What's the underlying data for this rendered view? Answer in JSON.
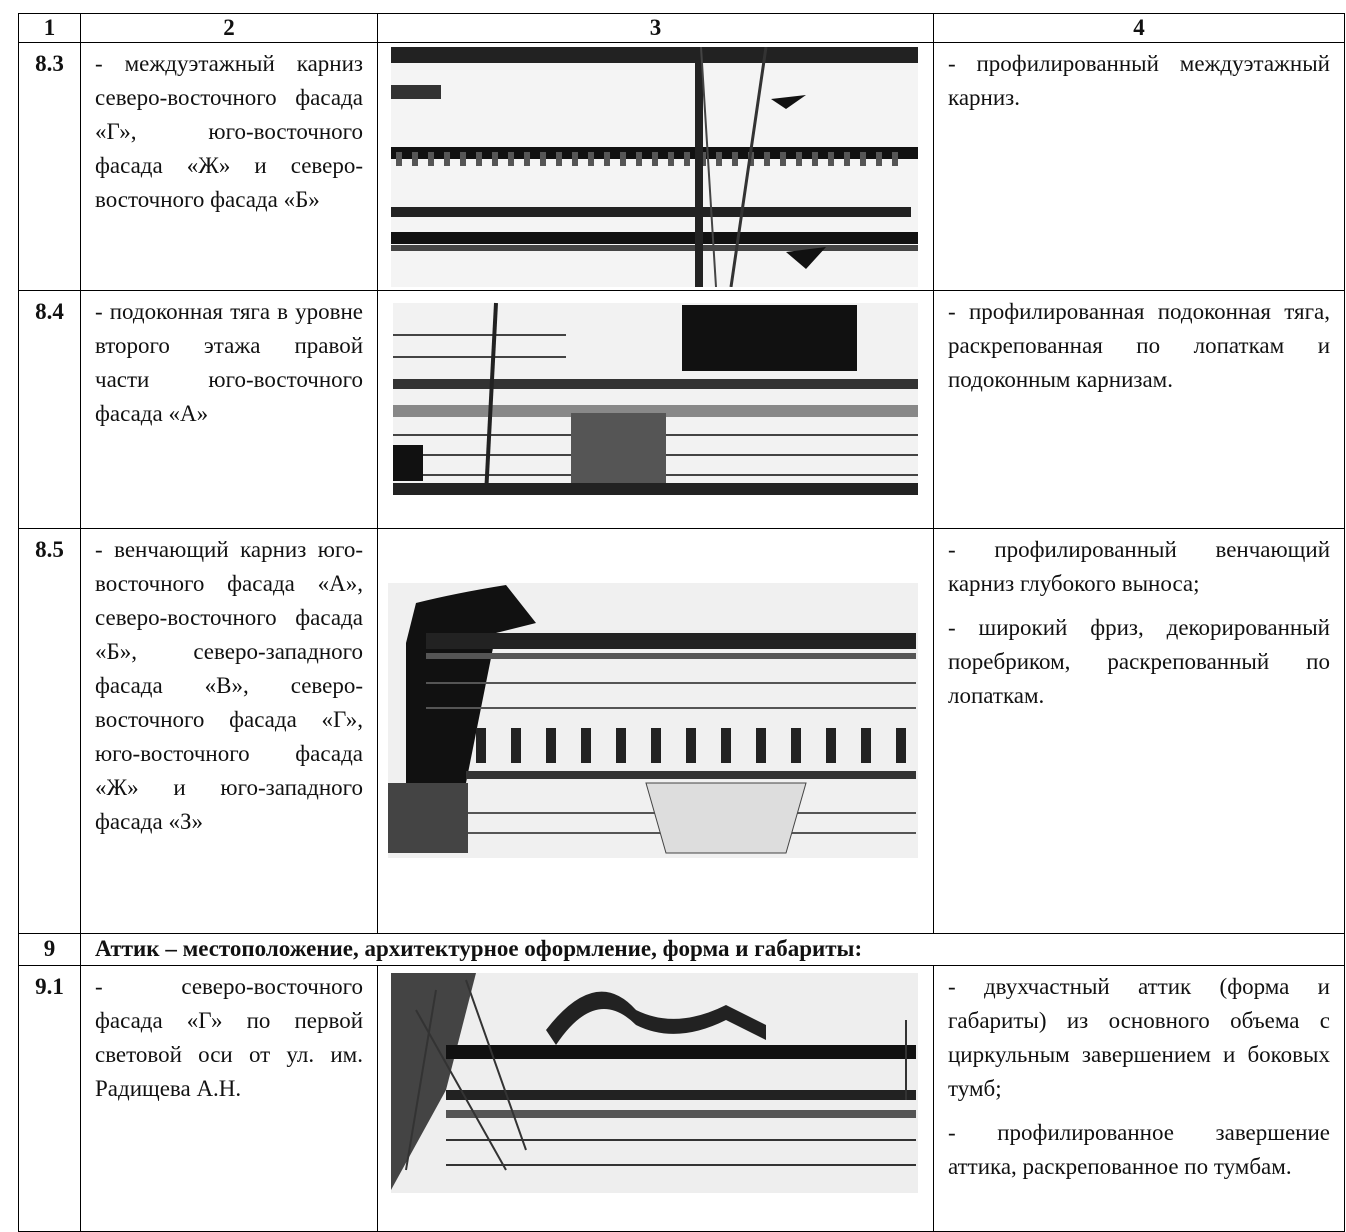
{
  "table": {
    "header": [
      "1",
      "2",
      "3",
      "4"
    ],
    "rows": [
      {
        "number": "8.3",
        "element": "- междуэтажный карниз северо-восточного фасада «Г», юго-восточного фасада «Ж» и северо-восточного фасада «Б»",
        "description": [
          "- профилированный междуэтажный карниз."
        ]
      },
      {
        "number": "8.4",
        "element": "- подоконная тяга в уровне второго этажа правой части юго-восточного фасада «А»",
        "description": [
          "- профилированная подоконная тяга, раскрепованная по лопаткам и подоконным карнизам."
        ]
      },
      {
        "number": "8.5",
        "element": "- венчающий карниз юго-восточного фасада «А», северо-восточного фасада «Б», северо-западного фасада «В», северо-восточного фасада «Г», юго-восточного фасада «Ж» и юго-западного фасада «З»",
        "description": [
          "- профилированный венчающий карниз глубокого выноса;",
          "- широкий фриз, декорированный поребриком, раскрепованный по лопаткам."
        ]
      },
      {
        "number": "9",
        "heading": "Аттик – местоположение, архитектурное оформление, форма и габариты:"
      },
      {
        "number": "9.1",
        "element": "- северо-восточного фасада «Г» по первой световой оси от ул. им. Радищева А.Н.",
        "description": [
          "- двухчастный аттик (форма и габариты) из основного объема с циркульным завершением и боковых тумб;",
          "- профилированное завершение аттика, раскрепованное по тумбам."
        ]
      }
    ]
  }
}
